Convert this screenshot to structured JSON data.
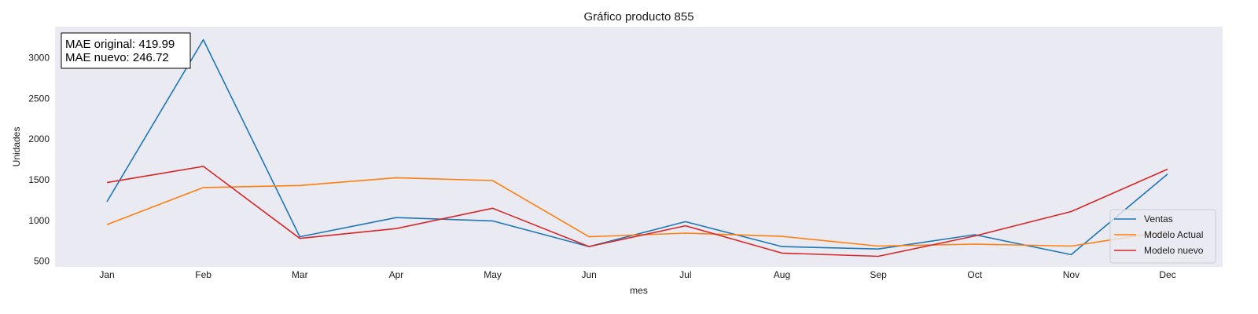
{
  "chart_data": {
    "type": "line",
    "title": "Gráfico producto 855",
    "xlabel": "mes",
    "ylabel": "Unidades",
    "categories": [
      "Jan",
      "Feb",
      "Mar",
      "Apr",
      "May",
      "Jun",
      "Jul",
      "Aug",
      "Sep",
      "Oct",
      "Nov",
      "Dec"
    ],
    "yticks": [
      "500",
      "1000",
      "1500",
      "2000",
      "2500",
      "3000"
    ],
    "ylim": [
      430,
      3380
    ],
    "grid": false,
    "background": "#eaeaf2",
    "legend_position": "lower-right",
    "series": [
      {
        "name": "Ventas",
        "color": "#1f77b4",
        "values": [
          1230,
          3220,
          800,
          1035,
          995,
          680,
          985,
          680,
          650,
          825,
          580,
          1570
        ]
      },
      {
        "name": "Modelo Actual",
        "color": "#ff7f0e",
        "values": [
          950,
          1405,
          1430,
          1525,
          1490,
          800,
          845,
          805,
          685,
          710,
          685,
          870
        ]
      },
      {
        "name": "Modelo nuevo",
        "color": "#d62728",
        "values": [
          1465,
          1665,
          780,
          900,
          1150,
          680,
          935,
          600,
          560,
          810,
          1110,
          1630
        ]
      }
    ],
    "annotation": {
      "lines": [
        "MAE original: 419.99",
        "MAE nuevo: 246.72"
      ]
    }
  }
}
